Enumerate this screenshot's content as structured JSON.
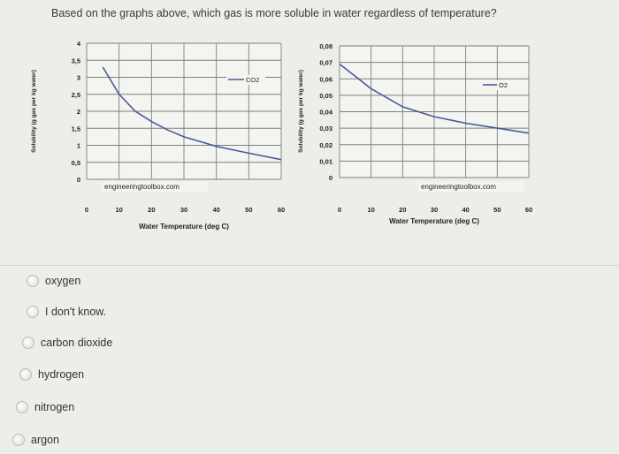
{
  "question": "Based on the graphs above, which gas is more soluble in water regardless of temperature?",
  "options": [
    {
      "label": "oxygen"
    },
    {
      "label": "I don't know."
    },
    {
      "label": "carbon dioxide"
    },
    {
      "label": "hydrogen"
    },
    {
      "label": "nitrogen"
    },
    {
      "label": "argon"
    }
  ],
  "chart_data": [
    {
      "type": "line",
      "xlabel": "Water Temperature (deg C)",
      "ylabel": "Solubility (g gas per kg water)",
      "xlim": [
        0,
        60
      ],
      "ylim": [
        0,
        4
      ],
      "x_ticks": [
        "0",
        "10",
        "20",
        "30",
        "40",
        "50",
        "60"
      ],
      "y_ticks": [
        "0",
        "0,5",
        "1",
        "1,5",
        "2",
        "2,5",
        "3",
        "3,5",
        "4"
      ],
      "series": [
        {
          "name": "CO2",
          "x": [
            5,
            10,
            15,
            20,
            25,
            30,
            40,
            50,
            60
          ],
          "y": [
            3.3,
            2.5,
            2.0,
            1.7,
            1.45,
            1.25,
            0.97,
            0.77,
            0.58
          ]
        }
      ],
      "legend": "top-right",
      "watermark": "engineeringtoolbox.com",
      "grid": true,
      "line_color": "#4a5a9a"
    },
    {
      "type": "line",
      "xlabel": "Water Temperature (deg C)",
      "ylabel": "Solubility (g gas per kg water)",
      "xlim": [
        0,
        60
      ],
      "ylim": [
        0,
        0.08
      ],
      "x_ticks": [
        "0",
        "10",
        "20",
        "30",
        "40",
        "50",
        "60"
      ],
      "y_ticks": [
        "0",
        "0,01",
        "0,02",
        "0,03",
        "0,04",
        "0,05",
        "0,06",
        "0,07",
        "0,08"
      ],
      "series": [
        {
          "name": "O2",
          "x": [
            0,
            10,
            20,
            30,
            40,
            50,
            60
          ],
          "y": [
            0.069,
            0.054,
            0.043,
            0.037,
            0.033,
            0.03,
            0.027
          ]
        }
      ],
      "legend": "top-right",
      "watermark": "engineeringtoolbox.com",
      "grid": true,
      "line_color": "#4a5a9a"
    }
  ]
}
